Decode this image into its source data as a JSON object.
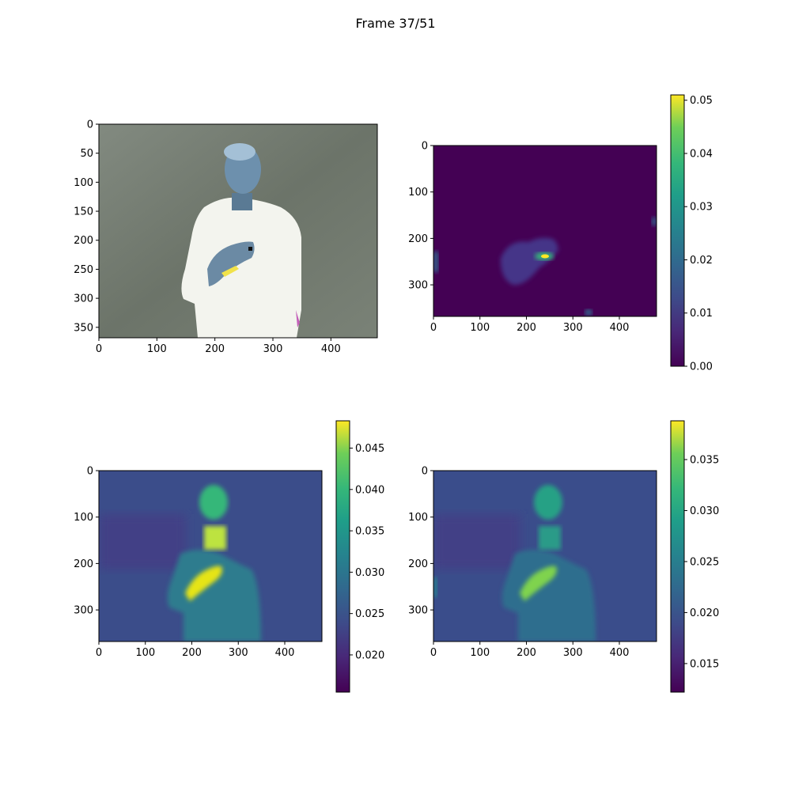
{
  "figure": {
    "title": "Frame 37/51"
  },
  "chart_data": [
    {
      "type": "heatmap",
      "panel": "top-left",
      "content": "inverted-color video frame of a person holding a hand to chest",
      "xticks": [
        "0",
        "100",
        "200",
        "300",
        "400"
      ],
      "yticks": [
        "0",
        "50",
        "100",
        "150",
        "200",
        "250",
        "300",
        "350"
      ],
      "xlim": [
        0,
        480
      ],
      "ylim": [
        368,
        0
      ],
      "colorbar": false
    },
    {
      "type": "heatmap",
      "panel": "top-right",
      "content": "motion map, bright region around the hand",
      "xticks": [
        "0",
        "100",
        "200",
        "300",
        "400"
      ],
      "yticks": [
        "0",
        "100",
        "200",
        "300"
      ],
      "xlim": [
        0,
        480
      ],
      "ylim": [
        368,
        0
      ],
      "colormap": "viridis",
      "colorbar": {
        "ticks": [
          "0.00",
          "0.01",
          "0.02",
          "0.03",
          "0.04",
          "0.05"
        ],
        "range": [
          0.0,
          0.051
        ]
      }
    },
    {
      "type": "heatmap",
      "panel": "bottom-left",
      "content": "saliency map, person silhouette with hand highlighted",
      "xticks": [
        "0",
        "100",
        "200",
        "300",
        "400"
      ],
      "yticks": [
        "0",
        "100",
        "200",
        "300"
      ],
      "xlim": [
        0,
        480
      ],
      "ylim": [
        368,
        0
      ],
      "colormap": "viridis",
      "colorbar": {
        "ticks": [
          "0.020",
          "0.025",
          "0.030",
          "0.035",
          "0.040",
          "0.045"
        ],
        "range": [
          0.0155,
          0.0483
        ]
      }
    },
    {
      "type": "heatmap",
      "panel": "bottom-right",
      "content": "combined map, person silhouette with hand highlighted",
      "xticks": [
        "0",
        "100",
        "200",
        "300",
        "400"
      ],
      "yticks": [
        "0",
        "100",
        "200",
        "300"
      ],
      "xlim": [
        0,
        480
      ],
      "ylim": [
        368,
        0
      ],
      "colormap": "viridis",
      "colorbar": {
        "ticks": [
          "0.015",
          "0.020",
          "0.025",
          "0.030",
          "0.035"
        ],
        "range": [
          0.0122,
          0.0388
        ]
      }
    }
  ]
}
